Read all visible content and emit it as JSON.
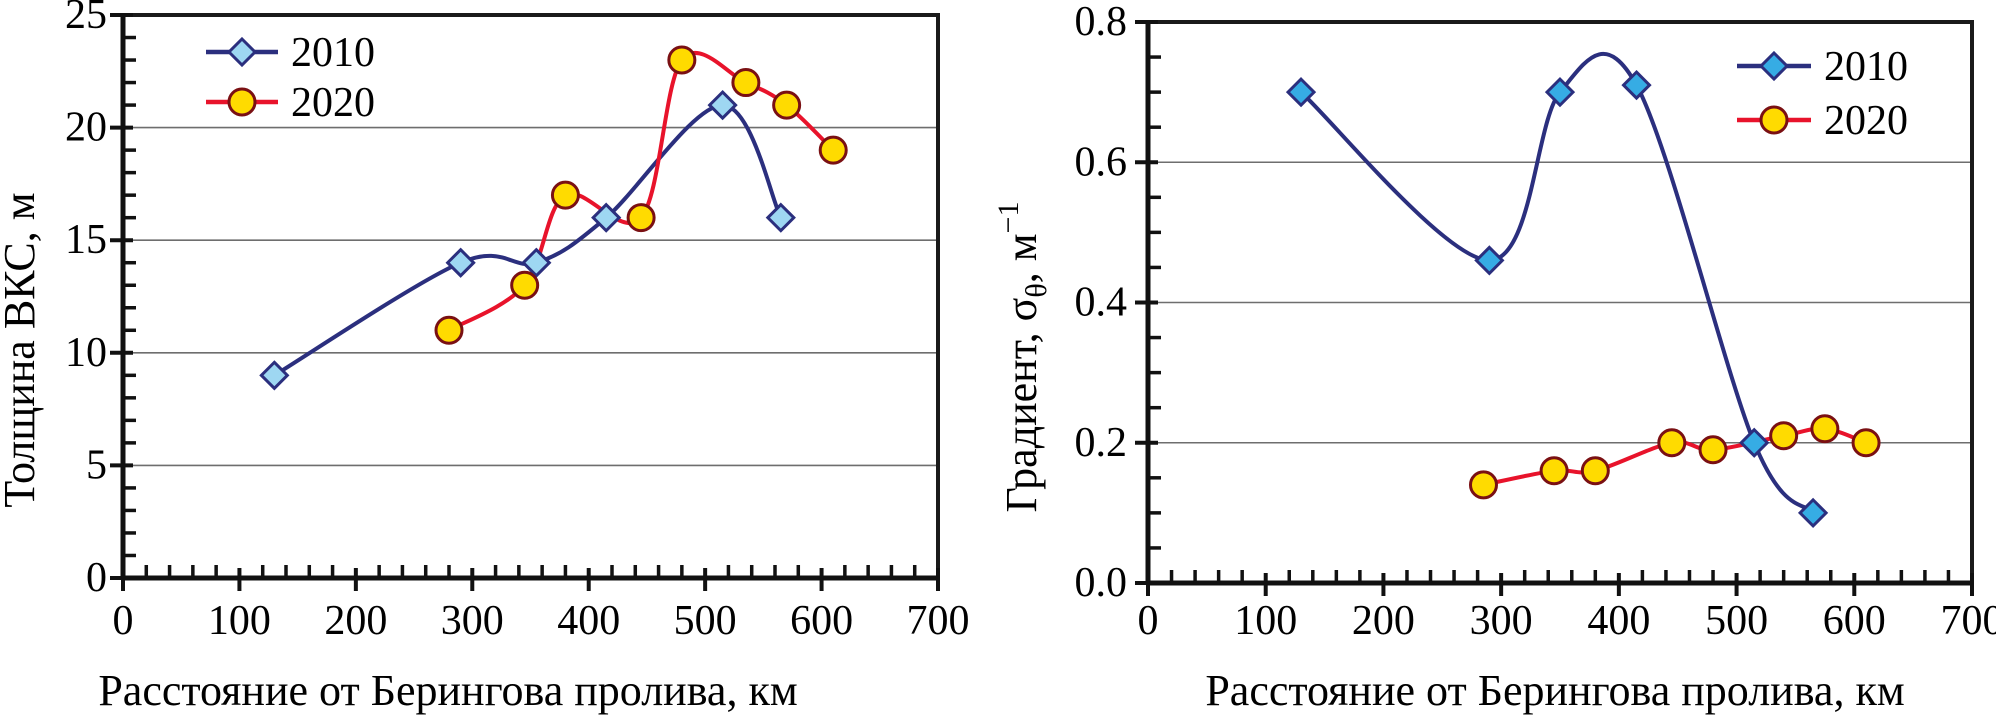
{
  "figure": {
    "background": "#ffffff",
    "description": "Two smoothed line charts comparing 2010 and 2020 oceanographic sections"
  },
  "colors": {
    "grid": "#6e6e6e",
    "axis": "#111111",
    "box": "#1a1a1a",
    "text": "#000000",
    "series_2010_line": "#2b2f7e",
    "series_2020_line": "#e8132b",
    "marker_yellow": "#ffdb00",
    "marker_yellow_stroke": "#7a1013",
    "marker_blue_light": "#9ed7f2",
    "marker_blue_bright": "#36ace4"
  },
  "chart_data": [
    {
      "type": "line",
      "title": "",
      "xlabel": "Расстояние от Берингова пролива, км",
      "ylabel": "Толщина ВКС, м",
      "ylabel_rich": [
        {
          "text": "Толщина ВКС, м",
          "style": "normal"
        }
      ],
      "xlim": [
        0,
        700
      ],
      "ylim": [
        0,
        25
      ],
      "xticks": [
        0,
        100,
        200,
        300,
        400,
        500,
        600,
        700
      ],
      "xtick_labels": [
        "0",
        "100",
        "200",
        "300",
        "400",
        "500",
        "600",
        "700"
      ],
      "yticks": [
        0,
        5,
        10,
        15,
        20,
        25
      ],
      "ytick_labels": [
        "0",
        "5",
        "10",
        "15",
        "20",
        "25"
      ],
      "x_minor_step": 20,
      "y_minor_step": 1,
      "grid": "horizontal",
      "legend_position": "top-left",
      "series": [
        {
          "name": "2010",
          "line_color": "#2b2f7e",
          "marker": "diamond",
          "marker_fill": "#9ed7f2",
          "marker_stroke": "#2b2f7e",
          "points": [
            [
              130,
              9
            ],
            [
              290,
              14
            ],
            [
              355,
              14
            ],
            [
              415,
              16
            ],
            [
              515,
              21
            ],
            [
              565,
              16
            ]
          ]
        },
        {
          "name": "2020",
          "line_color": "#e8132b",
          "marker": "circle",
          "marker_fill": "#ffdb00",
          "marker_stroke": "#7a1013",
          "points": [
            [
              280,
              11
            ],
            [
              345,
              13
            ],
            [
              380,
              17
            ],
            [
              445,
              16
            ],
            [
              480,
              23
            ],
            [
              535,
              22
            ],
            [
              570,
              21
            ],
            [
              610,
              19
            ]
          ]
        }
      ]
    },
    {
      "type": "line",
      "title": "",
      "xlabel": "Расстояние от Берингова пролива, км",
      "ylabel": "Градиент, σθ, м⁻¹",
      "ylabel_rich": [
        {
          "text": "Градиент, σ",
          "style": "normal"
        },
        {
          "text": "θ",
          "style": "sub"
        },
        {
          "text": ", м",
          "style": "normal"
        },
        {
          "text": "−1",
          "style": "sup"
        }
      ],
      "xlim": [
        0,
        700
      ],
      "ylim": [
        0,
        0.8
      ],
      "xticks": [
        0,
        100,
        200,
        300,
        400,
        500,
        600,
        700
      ],
      "xtick_labels": [
        "0",
        "100",
        "200",
        "300",
        "400",
        "500",
        "600",
        "700"
      ],
      "yticks": [
        0,
        0.2,
        0.4,
        0.6,
        0.8
      ],
      "ytick_labels": [
        "0.0",
        "0.2",
        "0.4",
        "0.6",
        "0.8"
      ],
      "x_minor_step": 20,
      "y_minor_step": 0.05,
      "grid": "horizontal",
      "legend_position": "top-right",
      "series": [
        {
          "name": "2010",
          "line_color": "#2b2f7e",
          "marker": "diamond",
          "marker_fill": "#36ace4",
          "marker_stroke": "#2b2f7e",
          "points": [
            [
              130,
              0.7
            ],
            [
              290,
              0.46
            ],
            [
              350,
              0.7
            ],
            [
              415,
              0.71
            ],
            [
              515,
              0.2
            ],
            [
              565,
              0.1
            ]
          ]
        },
        {
          "name": "2020",
          "line_color": "#e8132b",
          "marker": "circle",
          "marker_fill": "#ffdb00",
          "marker_stroke": "#7a1013",
          "points": [
            [
              285,
              0.14
            ],
            [
              345,
              0.16
            ],
            [
              380,
              0.16
            ],
            [
              445,
              0.2
            ],
            [
              480,
              0.19
            ],
            [
              540,
              0.21
            ],
            [
              575,
              0.22
            ],
            [
              610,
              0.2
            ]
          ]
        }
      ]
    }
  ]
}
